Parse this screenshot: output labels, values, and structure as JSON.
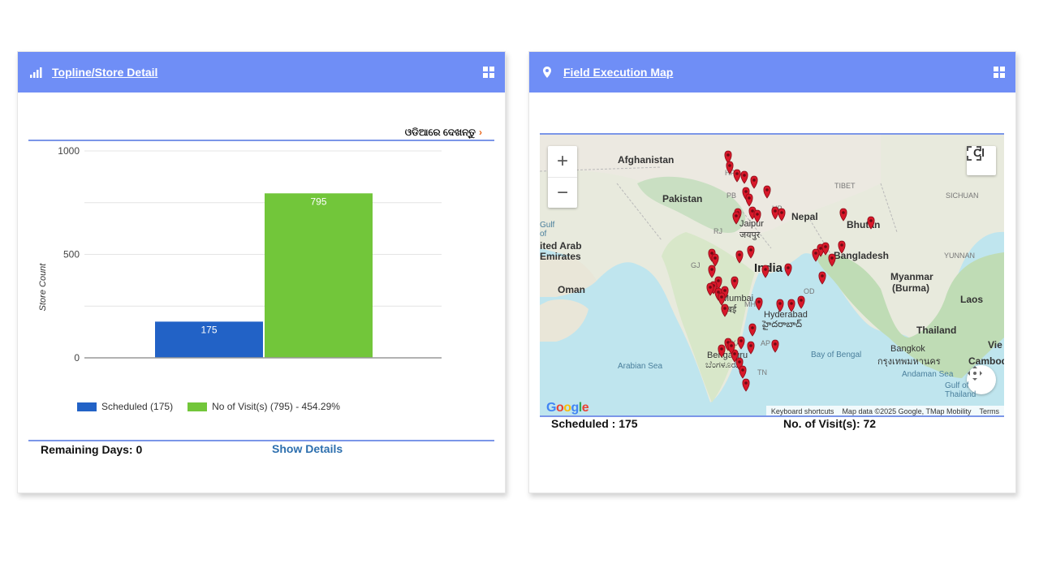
{
  "left_card": {
    "title": "Topline/Store Detail",
    "header_icon": "bar-signal-icon",
    "grid_icon": "grid-icon",
    "lang_link": "ଓଡିଆରେ ଦେଖନ୍ତୁ",
    "remaining_label": "Remaining Days: 0",
    "show_details_label": "Show Details",
    "legend": [
      {
        "label": "Scheduled (175)",
        "color": "#2262c6"
      },
      {
        "label": "No of Visit(s) (795) - 454.29%",
        "color": "#72c63a"
      }
    ]
  },
  "chart_data": {
    "type": "bar",
    "categories": [
      "Scheduled",
      "No of Visit(s)"
    ],
    "values": [
      175,
      795
    ],
    "colors": [
      "#2262c6",
      "#72c63a"
    ],
    "data_labels": [
      "175",
      "795"
    ],
    "ylabel": "Store Count",
    "ylim": [
      0,
      1000
    ],
    "y_ticks": [
      "0",
      "500",
      "1000"
    ],
    "grid": true
  },
  "right_card": {
    "title": "Field Execution Map",
    "header_icon": "map-pin-icon",
    "grid_icon": "grid-icon",
    "scheduled_label": "Scheduled : 175",
    "visits_label": "No. of Visit(s): 72",
    "map": {
      "zoom_in": "+",
      "zoom_out": "−",
      "google": "Google",
      "attribution": {
        "shortcuts": "Keyboard shortcuts",
        "data": "Map data ©2025 Google, TMap Mobility",
        "terms": "Terms"
      },
      "labels": {
        "afghanistan": "Afghanistan",
        "pakistan": "Pakistan",
        "nepal": "Nepal",
        "bhutan": "Bhutan",
        "india": "India",
        "bangladesh": "Bangladesh",
        "myanmar": "Myanmar",
        "burma": "(Burma)",
        "laos": "Laos",
        "thailand": "Thailand",
        "bangkok": "Bangkok",
        "bangkok_th": "กรุงเทพมหานคร",
        "cambodia": "Cambodia",
        "oman": "Oman",
        "uae1": "ited Arab",
        "uae2": "Emirates",
        "tibet": "TIBET",
        "sichuan": "SICHUAN",
        "yunnan": "YUNNAN",
        "arabian_sea": "Arabian Sea",
        "bay_of_bengal": "Bay of Bengal",
        "andaman_sea": "Andaman Sea",
        "gulf_of_thailand1": "Gulf of",
        "gulf_of_thailand2": "Thailand",
        "gulf": "Gulf",
        "of": "of",
        "jaipur": "Jaipur",
        "jaipur_hi": "जयपुर",
        "mumbai": "Mumbai",
        "mumbai_mr": "मुंबई",
        "hyderabad": "Hyderabad",
        "hyderabad_te": "హైదరాబాద్",
        "bengaluru": "Bengaluru",
        "bengaluru_kn": "ಬೆಂಗಳೂರು",
        "chi": "Cl",
        "vie": "Vie",
        "hp": "HP",
        "pb": "PB",
        "up": "UP",
        "rj": "RJ",
        "gj": "GJ",
        "mh": "MH",
        "ka": "KA",
        "ap": "AP",
        "tn": "TN",
        "od": "OD"
      }
    }
  }
}
